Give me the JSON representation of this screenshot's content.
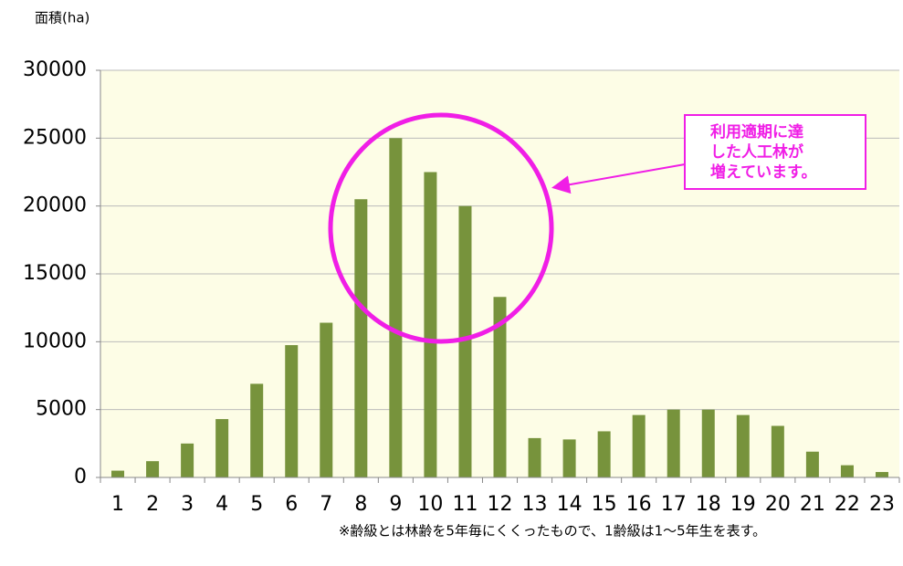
{
  "chart_data": {
    "type": "bar",
    "y_label": "面積(ha)",
    "categories": [
      "1",
      "2",
      "3",
      "4",
      "5",
      "6",
      "7",
      "8",
      "9",
      "10",
      "11",
      "12",
      "13",
      "14",
      "15",
      "16",
      "17",
      "18",
      "19",
      "20",
      "21",
      "22",
      "23"
    ],
    "values": [
      500,
      1200,
      2500,
      4300,
      6900,
      9750,
      11400,
      20500,
      25000,
      22500,
      20000,
      13300,
      2900,
      2800,
      3400,
      4600,
      5000,
      5000,
      4600,
      3800,
      1900,
      900,
      400
    ],
    "color": "#77933c",
    "ylim": [
      0,
      30000
    ],
    "yticks": [
      0,
      5000,
      10000,
      15000,
      20000,
      25000,
      30000
    ],
    "grid": true,
    "annotation": [
      "利用適期に達",
      "した人工林が",
      "増えています。"
    ],
    "footnote": "※齢級とは林齢を5年毎にくくったもので、1齢級は1～5年生を表す。"
  }
}
